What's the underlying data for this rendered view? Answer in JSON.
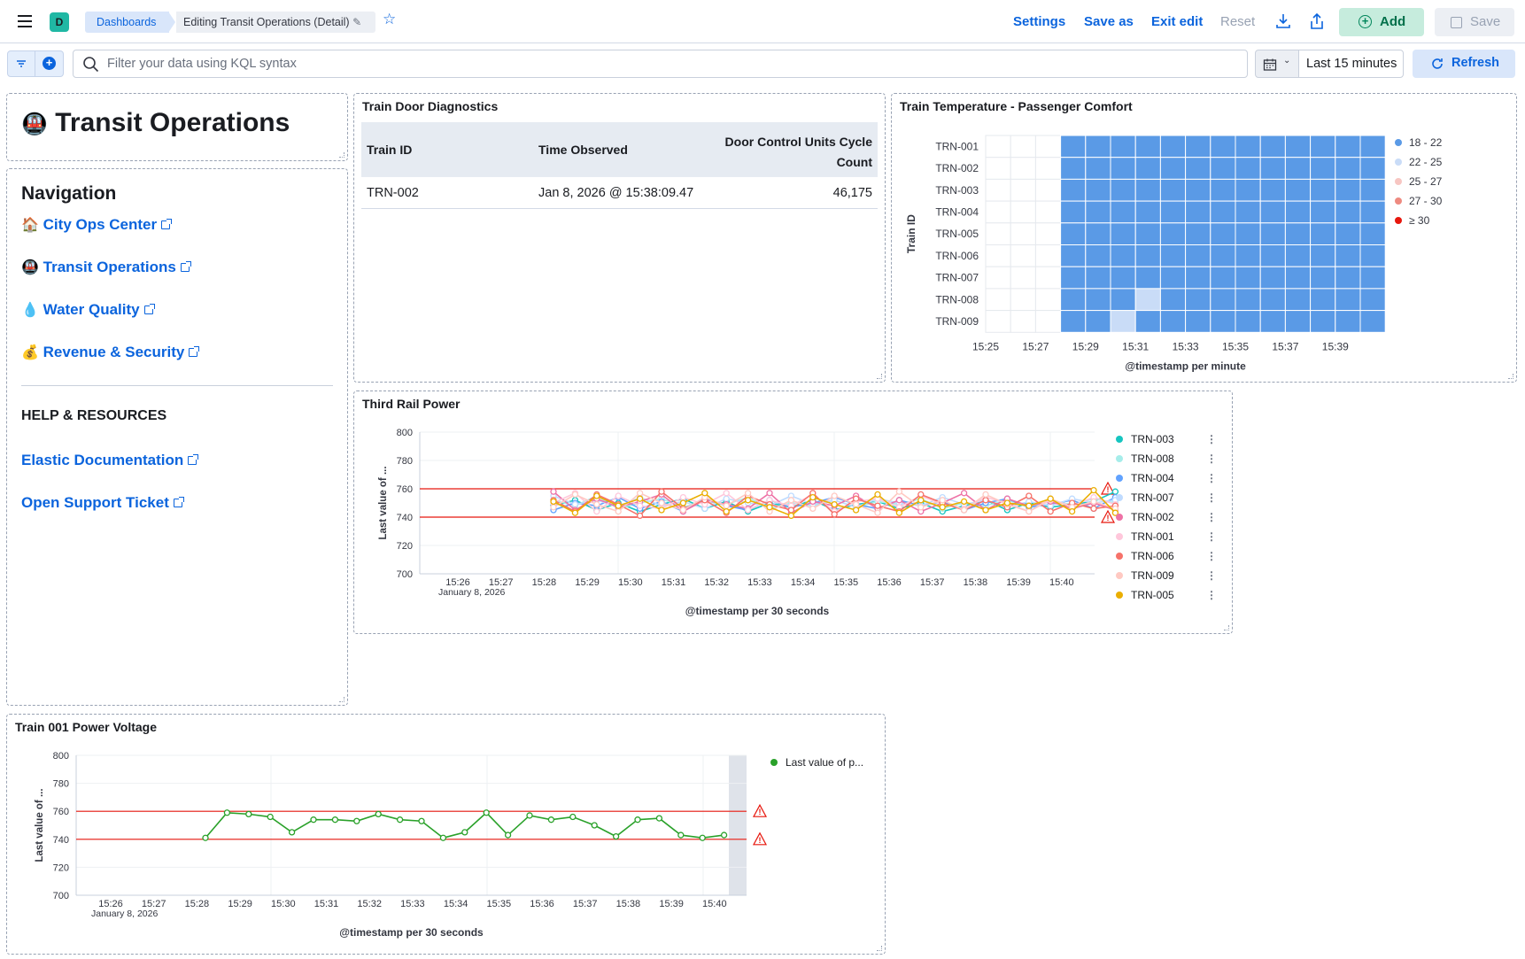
{
  "topbar": {
    "space_initial": "D",
    "breadcrumb_root": "Dashboards",
    "breadcrumb_current": "Editing Transit Operations (Detail)",
    "settings": "Settings",
    "save_as": "Save as",
    "exit_edit": "Exit edit",
    "reset": "Reset",
    "add": "Add",
    "save": "Save"
  },
  "filter": {
    "placeholder": "Filter your data using KQL syntax",
    "time_range": "Last 15 minutes",
    "refresh": "Refresh"
  },
  "title_panel": {
    "icon": "🚇",
    "title": "Transit Operations"
  },
  "nav_panel": {
    "heading": "Navigation",
    "links": [
      {
        "icon": "🏠",
        "label": "City Ops Center"
      },
      {
        "icon": "🚇",
        "label": "Transit Operations"
      },
      {
        "icon": "💧",
        "label": "Water Quality"
      },
      {
        "icon": "💰",
        "label": "Revenue & Security"
      }
    ],
    "help_heading": "HELP & RESOURCES",
    "help_links": [
      "Elastic Documentation",
      "Open Support Ticket"
    ]
  },
  "door_panel": {
    "title": "Train Door Diagnostics",
    "columns": [
      "Train ID",
      "Time Observed",
      "Door Control Units Cycle Count"
    ],
    "rows": [
      [
        "TRN-002",
        "Jan 8, 2026 @ 15:38:09.47",
        "46,175"
      ]
    ]
  },
  "temp_panel": {
    "title": "Train Temperature - Passenger Comfort",
    "ylabel": "Train ID",
    "xlabel": "@timestamp per minute",
    "trains": [
      "TRN-001",
      "TRN-002",
      "TRN-003",
      "TRN-004",
      "TRN-005",
      "TRN-006",
      "TRN-007",
      "TRN-008",
      "TRN-009"
    ],
    "x_ticks": [
      "15:25",
      "15:27",
      "15:29",
      "15:31",
      "15:33",
      "15:35",
      "15:37",
      "15:39"
    ],
    "legend": [
      {
        "label": "18 - 22",
        "color": "#5a9ae6"
      },
      {
        "label": "22 - 25",
        "color": "#c9dcf7"
      },
      {
        "label": "25 - 27",
        "color": "#f7c6c2"
      },
      {
        "label": "27 - 30",
        "color": "#ee8a80"
      },
      {
        "label": "≥ 30",
        "color": "#e7170d"
      }
    ]
  },
  "rail_panel": {
    "title": "Third Rail Power",
    "ylabel": "Last value of ...",
    "xlabel": "@timestamp per 30 seconds",
    "date_label": "January 8, 2026",
    "y_ticks": [
      "800",
      "780",
      "760",
      "740",
      "720",
      "700"
    ],
    "x_ticks": [
      "15:26",
      "15:27",
      "15:28",
      "15:29",
      "15:30",
      "15:31",
      "15:32",
      "15:33",
      "15:34",
      "15:35",
      "15:36",
      "15:37",
      "15:38",
      "15:39",
      "15:40"
    ],
    "legend": [
      {
        "label": "TRN-003",
        "color": "#16c5c0"
      },
      {
        "label": "TRN-008",
        "color": "#a6edea"
      },
      {
        "label": "TRN-004",
        "color": "#61a2ff"
      },
      {
        "label": "TRN-007",
        "color": "#bfdbff"
      },
      {
        "label": "TRN-002",
        "color": "#ee72a6"
      },
      {
        "label": "TRN-001",
        "color": "#ffc7db"
      },
      {
        "label": "TRN-006",
        "color": "#f6726a"
      },
      {
        "label": "TRN-009",
        "color": "#ffc9c2"
      },
      {
        "label": "TRN-005",
        "color": "#eaae01"
      }
    ]
  },
  "voltage_panel": {
    "title": "Train 001 Power Voltage",
    "ylabel": "Last value of ...",
    "xlabel": "@timestamp per 30 seconds",
    "date_label": "January 8, 2026",
    "legend_label": "Last value of p...",
    "y_ticks": [
      "800",
      "780",
      "760",
      "740",
      "720",
      "700"
    ],
    "x_ticks": [
      "15:26",
      "15:27",
      "15:28",
      "15:29",
      "15:30",
      "15:31",
      "15:32",
      "15:33",
      "15:34",
      "15:35",
      "15:36",
      "15:37",
      "15:38",
      "15:39",
      "15:40"
    ]
  },
  "chart_data": [
    {
      "type": "line",
      "title": "Third Rail Power",
      "xlabel": "@timestamp per 30 seconds",
      "ylabel": "Last value of ...",
      "ylim": [
        700,
        800
      ],
      "threshold_lines": [
        760,
        740
      ],
      "series": [
        {
          "name": "TRN-003",
          "values": [
            748,
            752,
            745,
            750,
            744,
            749,
            753,
            746,
            751,
            744,
            750,
            747,
            752,
            745,
            749,
            751,
            746,
            750,
            744,
            748,
            752,
            745,
            750,
            747,
            749,
            751,
            758
          ]
        },
        {
          "name": "TRN-008",
          "values": [
            752,
            748,
            755,
            746,
            750,
            753,
            747,
            751,
            749,
            754,
            746,
            750,
            748,
            752,
            747,
            751,
            749,
            753,
            746,
            750,
            748,
            752,
            747,
            751,
            749,
            753,
            750
          ]
        },
        {
          "name": "TRN-004",
          "values": [
            745,
            750,
            748,
            754,
            746,
            751,
            744,
            753,
            748,
            745,
            752,
            747,
            750,
            754,
            749,
            746,
            752,
            748,
            751,
            745,
            750,
            753,
            747,
            749,
            752,
            746,
            754
          ]
        },
        {
          "name": "TRN-007",
          "values": [
            755,
            749,
            752,
            747,
            754,
            748,
            751,
            746,
            753,
            750,
            748,
            755,
            749,
            752,
            747,
            753,
            750,
            748,
            754,
            749,
            752,
            747,
            751,
            748,
            753,
            750,
            752
          ]
        },
        {
          "name": "TRN-002",
          "values": [
            758,
            745,
            753,
            747,
            751,
            756,
            744,
            752,
            749,
            746,
            757,
            743,
            751,
            748,
            755,
            746,
            752,
            744,
            750,
            757,
            745,
            753,
            748,
            751,
            746,
            750,
            745
          ]
        },
        {
          "name": "TRN-001",
          "values": [
            750,
            757,
            744,
            755,
            748,
            746,
            754,
            749,
            757,
            745,
            752,
            748,
            756,
            744,
            751,
            753,
            747,
            755,
            749,
            746,
            754,
            750,
            744,
            752,
            748,
            754,
            749
          ]
        },
        {
          "name": "TRN-006",
          "values": [
            752,
            744,
            756,
            749,
            741,
            758,
            746,
            752,
            743,
            755,
            749,
            745,
            757,
            742,
            753,
            748,
            744,
            756,
            750,
            745,
            752,
            747,
            755,
            744,
            750,
            746,
            748
          ]
        },
        {
          "name": "TRN-009",
          "values": [
            747,
            756,
            749,
            744,
            757,
            750,
            745,
            754,
            748,
            757,
            744,
            752,
            746,
            755,
            749,
            743,
            758,
            747,
            752,
            745,
            756,
            749,
            744,
            753,
            747,
            751,
            746
          ]
        },
        {
          "name": "TRN-005",
          "values": [
            751,
            743,
            755,
            748,
            753,
            745,
            750,
            757,
            744,
            752,
            747,
            741,
            754,
            749,
            745,
            756,
            743,
            752,
            747,
            751,
            745,
            750,
            748,
            753,
            744,
            759,
            743
          ]
        }
      ]
    },
    {
      "type": "line",
      "title": "Train 001 Power Voltage",
      "xlabel": "@timestamp per 30 seconds",
      "ylabel": "Last value of ...",
      "ylim": [
        700,
        800
      ],
      "threshold_lines": [
        760,
        740
      ],
      "series": [
        {
          "name": "Last value of p...",
          "values": [
            741,
            759,
            758,
            756,
            745,
            754,
            754,
            753,
            758,
            754,
            753,
            741,
            745,
            759,
            743,
            757,
            754,
            756,
            750,
            742,
            754,
            755,
            743,
            741,
            743
          ]
        }
      ]
    },
    {
      "type": "heatmap",
      "title": "Train Temperature - Passenger Comfort",
      "xlabel": "@timestamp per minute",
      "ylabel": "Train ID",
      "x": [
        "15:25",
        "15:26",
        "15:27",
        "15:28",
        "15:29",
        "15:30",
        "15:31",
        "15:32",
        "15:33",
        "15:34",
        "15:35",
        "15:36",
        "15:37",
        "15:38",
        "15:39",
        "15:40"
      ],
      "y": [
        "TRN-001",
        "TRN-002",
        "TRN-003",
        "TRN-004",
        "TRN-005",
        "TRN-006",
        "TRN-007",
        "TRN-008",
        "TRN-009"
      ],
      "cells": [
        [
          null,
          null,
          null,
          1,
          1,
          1,
          1,
          1,
          1,
          1,
          1,
          1,
          1,
          1,
          1,
          1
        ],
        [
          null,
          null,
          null,
          1,
          1,
          1,
          1,
          1,
          1,
          1,
          1,
          1,
          1,
          1,
          1,
          1
        ],
        [
          null,
          null,
          null,
          1,
          1,
          1,
          1,
          1,
          1,
          1,
          1,
          1,
          1,
          1,
          1,
          1
        ],
        [
          null,
          null,
          null,
          1,
          1,
          1,
          1,
          1,
          1,
          1,
          1,
          1,
          1,
          1,
          1,
          1
        ],
        [
          null,
          null,
          null,
          1,
          1,
          1,
          1,
          1,
          1,
          1,
          1,
          1,
          1,
          1,
          1,
          1
        ],
        [
          null,
          null,
          null,
          1,
          1,
          1,
          1,
          1,
          1,
          1,
          1,
          1,
          1,
          1,
          1,
          1
        ],
        [
          null,
          null,
          null,
          1,
          1,
          1,
          1,
          1,
          1,
          1,
          1,
          1,
          1,
          1,
          1,
          1
        ],
        [
          null,
          null,
          null,
          1,
          1,
          1,
          2,
          1,
          1,
          1,
          1,
          1,
          1,
          1,
          1,
          1
        ],
        [
          null,
          null,
          null,
          1,
          1,
          2,
          1,
          1,
          1,
          1,
          1,
          1,
          1,
          1,
          1,
          1
        ]
      ],
      "cell_legend": [
        "18 - 22",
        "22 - 25"
      ]
    }
  ]
}
